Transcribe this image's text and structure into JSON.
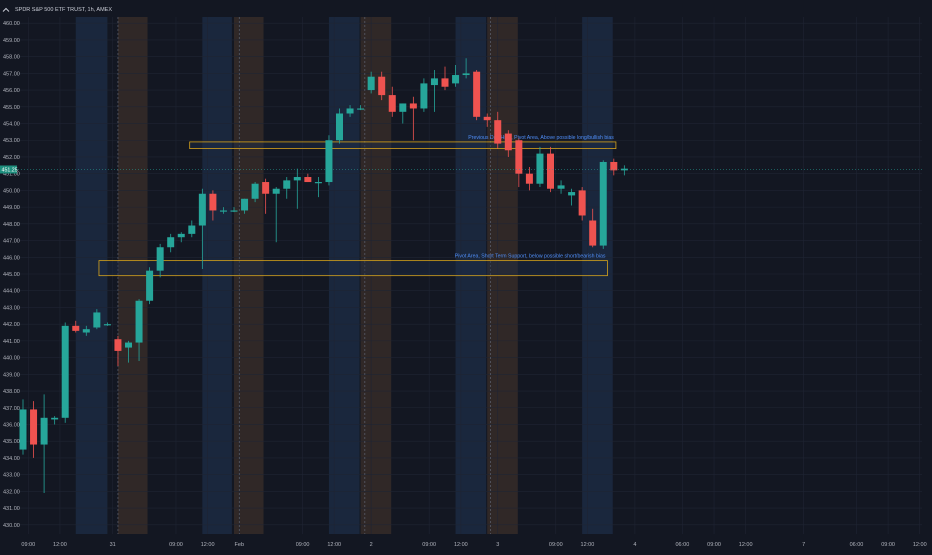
{
  "header": {
    "symbol_line": "SPDR S&P 500 ETF TRUST, 1h, AMEX",
    "collapse_icon": "chevron-up-icon"
  },
  "colors": {
    "background": "#131722",
    "up": "#26a69a",
    "down": "#ef5350",
    "grid": "#1f2433",
    "axis_text": "#b2b5be",
    "pre_session": "#3b2f2a",
    "post_session": "#1d2d47",
    "level_outline": "#d6a31c",
    "annotation_text": "#4f8df6",
    "price_badge": "#1e8f7e"
  },
  "chart_data": {
    "type": "candlestick",
    "title": "SPDR S&P 500 ETF TRUST, 1h, AMEX",
    "ylim": [
      429.5,
      460.8
    ],
    "y_ticks": [
      "460.00",
      "459.00",
      "458.00",
      "457.00",
      "456.00",
      "455.00",
      "454.00",
      "453.00",
      "452.00",
      "451.00",
      "450.00",
      "449.00",
      "448.00",
      "447.00",
      "446.00",
      "445.00",
      "444.00",
      "443.00",
      "442.00",
      "441.00",
      "440.00",
      "439.00",
      "438.00",
      "437.00",
      "436.00",
      "435.00",
      "434.00",
      "433.00",
      "432.00",
      "431.00",
      "430.00"
    ],
    "last_price": "451.25",
    "x_ticks": [
      {
        "bar": 0.5,
        "label": "09:00"
      },
      {
        "bar": 3.5,
        "label": "12:00"
      },
      {
        "bar": 8.5,
        "label": "31"
      },
      {
        "bar": 14.5,
        "label": "09:00"
      },
      {
        "bar": 17.5,
        "label": "12:00"
      },
      {
        "bar": 20.5,
        "label": "Feb"
      },
      {
        "bar": 26.5,
        "label": "09:00"
      },
      {
        "bar": 29.5,
        "label": "12:00"
      },
      {
        "bar": 33,
        "label": "2"
      },
      {
        "bar": 38.5,
        "label": "09:00"
      },
      {
        "bar": 41.5,
        "label": "12:00"
      },
      {
        "bar": 45,
        "label": "3"
      },
      {
        "bar": 50.5,
        "label": "09:00"
      },
      {
        "bar": 53.5,
        "label": "12:00"
      },
      {
        "bar": 58,
        "label": "4"
      },
      {
        "bar": 62.5,
        "label": "06:00"
      },
      {
        "bar": 65.5,
        "label": "09:00"
      },
      {
        "bar": 68.5,
        "label": "12:00"
      },
      {
        "bar": 74,
        "label": "7"
      },
      {
        "bar": 79,
        "label": "06:00"
      },
      {
        "bar": 82,
        "label": "09:00"
      },
      {
        "bar": 85,
        "label": "12:00"
      }
    ],
    "sessions": [
      {
        "kind": "post",
        "from": 5.0,
        "to": 8.0
      },
      {
        "kind": "pre",
        "from": 9.0,
        "to": 11.8
      },
      {
        "kind": "post",
        "from": 17.0,
        "to": 19.8
      },
      {
        "kind": "pre",
        "from": 20.0,
        "to": 22.8
      },
      {
        "kind": "post",
        "from": 29.0,
        "to": 31.9
      },
      {
        "kind": "pre",
        "from": 32.0,
        "to": 34.9
      },
      {
        "kind": "post",
        "from": 41.0,
        "to": 43.9
      },
      {
        "kind": "pre",
        "from": 44.0,
        "to": 46.9
      },
      {
        "kind": "post",
        "from": 53.0,
        "to": 55.9
      }
    ],
    "day_separators": [
      9.0,
      20.5,
      32.4,
      44.3
    ],
    "candles": [
      {
        "o": 434.5,
        "h": 437.5,
        "l": 434.2,
        "c": 436.9
      },
      {
        "o": 436.9,
        "h": 437.4,
        "l": 434.0,
        "c": 434.8
      },
      {
        "o": 434.8,
        "h": 437.8,
        "l": 431.9,
        "c": 436.4
      },
      {
        "o": 436.3,
        "h": 436.5,
        "l": 436.0,
        "c": 436.4
      },
      {
        "o": 436.4,
        "h": 442.1,
        "l": 436.1,
        "c": 441.9
      },
      {
        "o": 441.9,
        "h": 442.2,
        "l": 441.5,
        "c": 441.6
      },
      {
        "o": 441.5,
        "h": 441.9,
        "l": 441.3,
        "c": 441.7
      },
      {
        "o": 441.8,
        "h": 442.9,
        "l": 441.7,
        "c": 442.7
      },
      {
        "o": 442.0,
        "h": 442.1,
        "l": 441.9,
        "c": 442.0
      },
      {
        "o": 441.1,
        "h": 441.3,
        "l": 439.5,
        "c": 440.4
      },
      {
        "o": 440.6,
        "h": 441.0,
        "l": 439.7,
        "c": 440.9
      },
      {
        "o": 440.9,
        "h": 443.5,
        "l": 439.8,
        "c": 443.4
      },
      {
        "o": 443.4,
        "h": 445.4,
        "l": 443.2,
        "c": 445.2
      },
      {
        "o": 445.2,
        "h": 446.8,
        "l": 444.8,
        "c": 446.6
      },
      {
        "o": 446.6,
        "h": 447.4,
        "l": 446.3,
        "c": 447.2
      },
      {
        "o": 447.2,
        "h": 447.5,
        "l": 446.9,
        "c": 447.4
      },
      {
        "o": 447.4,
        "h": 448.2,
        "l": 447.2,
        "c": 447.9
      },
      {
        "o": 447.9,
        "h": 450.1,
        "l": 445.3,
        "c": 449.8
      },
      {
        "o": 449.8,
        "h": 450.0,
        "l": 448.2,
        "c": 448.8
      },
      {
        "o": 448.8,
        "h": 449.0,
        "l": 448.6,
        "c": 448.8
      },
      {
        "o": 448.8,
        "h": 449.0,
        "l": 448.7,
        "c": 448.8
      },
      {
        "o": 448.8,
        "h": 449.5,
        "l": 448.6,
        "c": 449.5
      },
      {
        "o": 449.5,
        "h": 450.5,
        "l": 449.3,
        "c": 450.4
      },
      {
        "o": 450.5,
        "h": 450.7,
        "l": 448.6,
        "c": 449.8
      },
      {
        "o": 449.8,
        "h": 450.2,
        "l": 446.9,
        "c": 450.1
      },
      {
        "o": 450.1,
        "h": 450.8,
        "l": 449.5,
        "c": 450.6
      },
      {
        "o": 450.6,
        "h": 451.3,
        "l": 448.9,
        "c": 450.8
      },
      {
        "o": 450.8,
        "h": 451.0,
        "l": 450.5,
        "c": 450.5
      },
      {
        "o": 450.5,
        "h": 450.8,
        "l": 449.6,
        "c": 450.5
      },
      {
        "o": 450.5,
        "h": 453.3,
        "l": 450.3,
        "c": 453.0
      },
      {
        "o": 453.0,
        "h": 454.9,
        "l": 452.8,
        "c": 454.6
      },
      {
        "o": 454.6,
        "h": 455.1,
        "l": 454.4,
        "c": 454.9
      },
      {
        "o": 454.9,
        "h": 455.1,
        "l": 454.8,
        "c": 454.9
      },
      {
        "o": 456.0,
        "h": 457.1,
        "l": 455.8,
        "c": 456.8
      },
      {
        "o": 456.8,
        "h": 457.1,
        "l": 455.4,
        "c": 455.7
      },
      {
        "o": 455.7,
        "h": 456.2,
        "l": 454.4,
        "c": 454.7
      },
      {
        "o": 454.7,
        "h": 455.2,
        "l": 454.0,
        "c": 455.2
      },
      {
        "o": 455.2,
        "h": 455.6,
        "l": 453.0,
        "c": 454.9
      },
      {
        "o": 454.9,
        "h": 456.7,
        "l": 454.7,
        "c": 456.4
      },
      {
        "o": 456.3,
        "h": 457.2,
        "l": 454.7,
        "c": 456.7
      },
      {
        "o": 456.7,
        "h": 457.4,
        "l": 456.0,
        "c": 456.2
      },
      {
        "o": 456.4,
        "h": 457.5,
        "l": 456.2,
        "c": 456.9
      },
      {
        "o": 456.9,
        "h": 457.9,
        "l": 456.7,
        "c": 457.0
      },
      {
        "o": 457.1,
        "h": 457.2,
        "l": 454.2,
        "c": 454.4
      },
      {
        "o": 454.4,
        "h": 454.6,
        "l": 453.8,
        "c": 454.2
      },
      {
        "o": 454.2,
        "h": 454.7,
        "l": 452.5,
        "c": 452.8
      },
      {
        "o": 453.4,
        "h": 453.6,
        "l": 452.0,
        "c": 452.4
      },
      {
        "o": 453.0,
        "h": 453.1,
        "l": 450.2,
        "c": 451.0
      },
      {
        "o": 451.0,
        "h": 451.4,
        "l": 450.0,
        "c": 450.4
      },
      {
        "o": 450.4,
        "h": 452.6,
        "l": 450.2,
        "c": 452.2
      },
      {
        "o": 452.2,
        "h": 452.6,
        "l": 449.9,
        "c": 450.1
      },
      {
        "o": 450.1,
        "h": 450.6,
        "l": 449.8,
        "c": 450.3
      },
      {
        "o": 449.7,
        "h": 450.1,
        "l": 449.1,
        "c": 449.9
      },
      {
        "o": 450.0,
        "h": 450.2,
        "l": 448.2,
        "c": 448.5
      },
      {
        "o": 448.2,
        "h": 448.9,
        "l": 446.6,
        "c": 446.7
      },
      {
        "o": 446.7,
        "h": 451.8,
        "l": 446.5,
        "c": 451.7
      },
      {
        "o": 451.7,
        "h": 451.9,
        "l": 450.9,
        "c": 451.2
      },
      {
        "o": 451.2,
        "h": 451.5,
        "l": 450.9,
        "c": 451.3
      }
    ],
    "zones": [
      {
        "from_bar": 15.8,
        "to_bar": 56.2,
        "low": 452.5,
        "high": 452.9,
        "label": "Previous Day High, Pivot Area, Above possible long/bullish bias"
      },
      {
        "from_bar": 7.2,
        "to_bar": 55.4,
        "low": 444.9,
        "high": 445.8,
        "label": "Pivot Area, Short Term Support, below possible short/bearish bias"
      }
    ]
  }
}
